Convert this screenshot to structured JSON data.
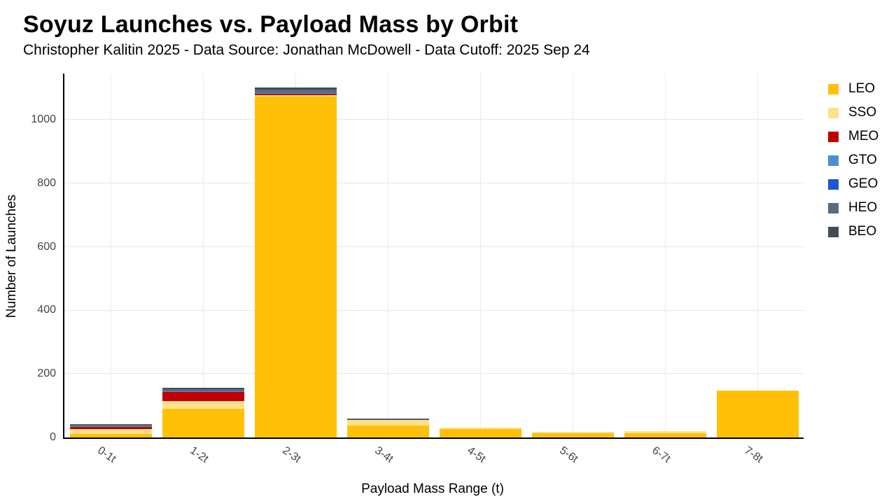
{
  "header": {
    "title": "Soyuz Launches vs. Payload Mass by Orbit",
    "subtitle": "Christopher Kalitin 2025 - Data Source: Jonathan McDowell - Data Cutoff: 2025 Sep 24"
  },
  "chart_data": {
    "type": "bar",
    "stacked": true,
    "title": "Soyuz Launches vs. Payload Mass by Orbit",
    "subtitle": "Christopher Kalitin 2025 - Data Source: Jonathan McDowell - Data Cutoff: 2025 Sep 24",
    "xlabel": "Payload Mass Range (t)",
    "ylabel": "Number of Launches",
    "categories": [
      "0-1t",
      "1-2t",
      "2-3t",
      "3-4t",
      "4-5t",
      "5-6t",
      "6-7t",
      "7-8t"
    ],
    "series": [
      {
        "name": "LEO",
        "color": "#FFC107",
        "values": [
          10,
          90,
          1074,
          38,
          26,
          13,
          14,
          148
        ]
      },
      {
        "name": "SSO",
        "color": "#FFE08A",
        "values": [
          16,
          24,
          3,
          18,
          5,
          4,
          5,
          0
        ]
      },
      {
        "name": "MEO",
        "color": "#C00000",
        "values": [
          8,
          29,
          5,
          0,
          0,
          0,
          0,
          0
        ]
      },
      {
        "name": "GTO",
        "color": "#4A8FD3",
        "values": [
          1,
          2,
          2,
          0,
          0,
          0,
          0,
          0
        ]
      },
      {
        "name": "GEO",
        "color": "#1E56D6",
        "values": [
          1,
          1,
          1,
          0,
          0,
          0,
          0,
          0
        ]
      },
      {
        "name": "HEO",
        "color": "#5A6B7D",
        "values": [
          4,
          7,
          10,
          2,
          0,
          0,
          0,
          0
        ]
      },
      {
        "name": "BEO",
        "color": "#404C56",
        "values": [
          2,
          4,
          6,
          1,
          0,
          0,
          0,
          0
        ]
      }
    ],
    "totals": [
      42,
      157,
      1101,
      59,
      31,
      17,
      19,
      148
    ],
    "yticks": [
      0,
      200,
      400,
      600,
      800,
      1000
    ],
    "ylim": [
      0,
      1146
    ],
    "grid": true,
    "legend_position": "right",
    "colors": {
      "background": "#ffffff",
      "axis_line": "#000000",
      "gridline": "#e6e6e6",
      "tick_text": "#444444",
      "title_text": "#000000"
    }
  }
}
